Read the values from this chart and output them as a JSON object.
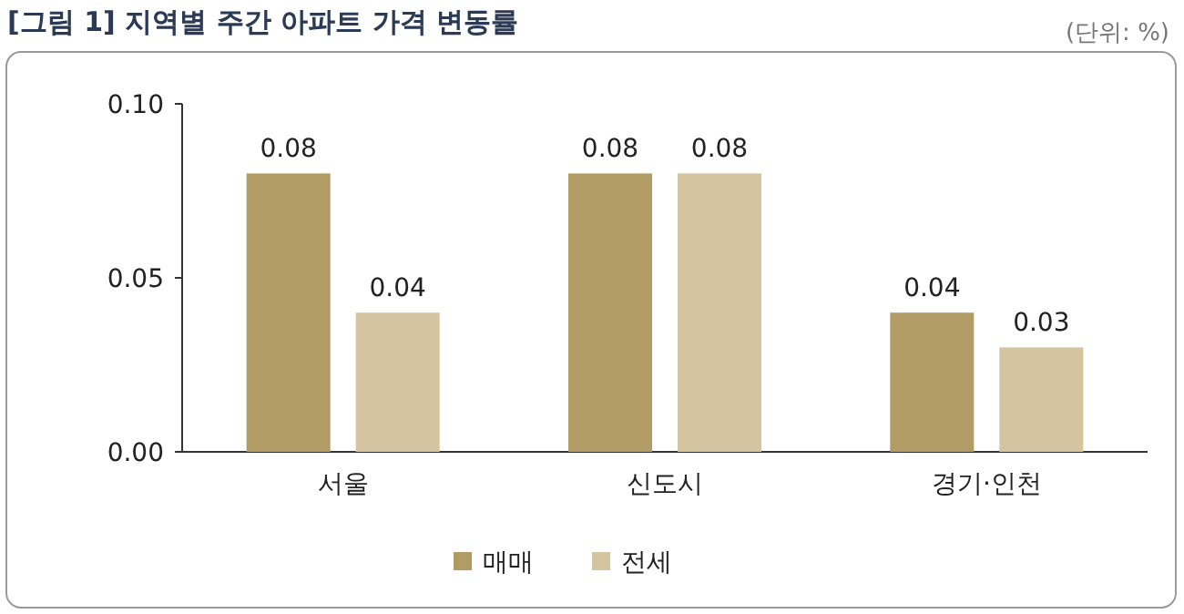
{
  "chart_data": {
    "type": "bar",
    "title": "[그림 1] 지역별 주간 아파트 가격 변동률",
    "annotations": [
      "(단위: %)"
    ],
    "categories": [
      "서울",
      "신도시",
      "경기·인천"
    ],
    "series": [
      {
        "name": "매매",
        "color": "#b19c66",
        "values": [
          0.08,
          0.08,
          0.04
        ]
      },
      {
        "name": "전세",
        "color": "#d5c4a0",
        "values": [
          0.04,
          0.08,
          0.03
        ]
      }
    ],
    "ylim": [
      0,
      0.1
    ],
    "yticks": [
      {
        "value": 0,
        "label": "0.00"
      },
      {
        "value": 0.05,
        "label": "0.05"
      },
      {
        "value": 0.1,
        "label": "0.10"
      }
    ],
    "data_labels": true,
    "legend": "bottom",
    "grid": false
  }
}
